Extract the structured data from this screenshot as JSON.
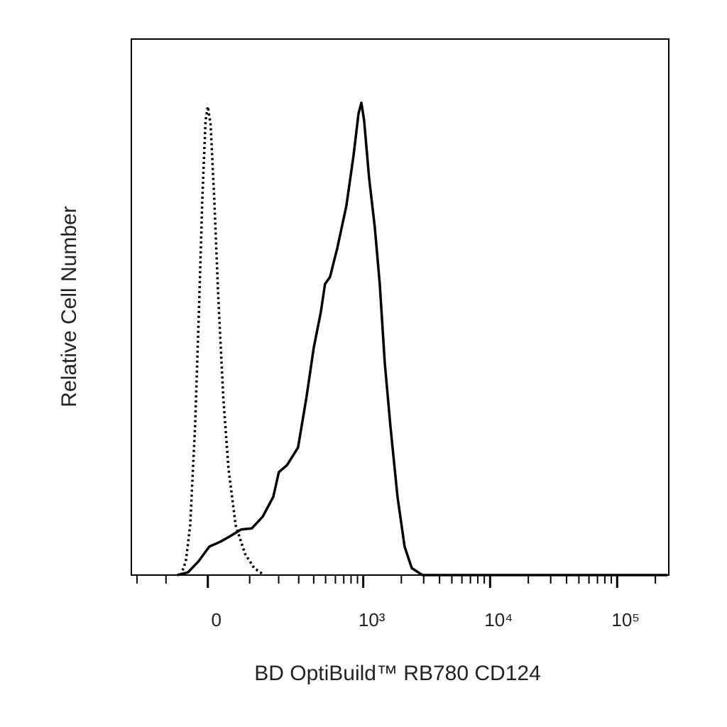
{
  "chart_data": {
    "type": "line",
    "xlabel": "BD OptiBuild™ RB780 CD124",
    "ylabel": "Relative Cell Number",
    "xscale": "biexponential",
    "xlim": [
      -225,
      255000
    ],
    "ylim": [
      0,
      100
    ],
    "xticks": [
      0,
      {
        "value": 1000,
        "label": "10³"
      },
      {
        "value": 10000,
        "label": "10⁴"
      },
      {
        "value": 100000,
        "label": "10⁵"
      }
    ],
    "x_minor_ticks": [
      -200,
      -100,
      100,
      200,
      300,
      400,
      500,
      600,
      700,
      800,
      900,
      2000,
      3000,
      4000,
      5000,
      6000,
      7000,
      8000,
      9000,
      20000,
      30000,
      40000,
      50000,
      60000,
      70000,
      80000,
      90000,
      200000
    ],
    "series": [
      {
        "color": "#000000",
        "dash": "dotted",
        "x": [
          -61,
          -49,
          -39,
          -28,
          -20,
          -12,
          -5,
          0,
          6,
          14,
          23,
          34,
          46,
          63,
          87,
          113,
          145
        ],
        "values": [
          0,
          2.6,
          9.3,
          27.8,
          47.7,
          70.2,
          84.8,
          87.4,
          84.1,
          70.2,
          51.7,
          33.1,
          19.9,
          9.3,
          4,
          1.3,
          0
        ]
      },
      {
        "color": "#000000",
        "dash": "solid",
        "x": [
          -70,
          -44,
          -20,
          3,
          27,
          51,
          77,
          106,
          140,
          178,
          201,
          238,
          296,
          348,
          400,
          457,
          495,
          543,
          620,
          734,
          836,
          917,
          966,
          1016,
          1112,
          1234,
          1351,
          1478,
          1640,
          1866,
          2123,
          2416,
          2932,
          249000
        ],
        "values": [
          0,
          0.5,
          2.6,
          5.3,
          6.2,
          7.3,
          8.5,
          8.7,
          10.9,
          14.6,
          19.2,
          20.5,
          23.8,
          33.1,
          42.4,
          49,
          54.3,
          55.6,
          60.9,
          68.9,
          78.1,
          86.1,
          88.1,
          84.8,
          74.2,
          64.9,
          54.3,
          39.7,
          27.8,
          14.6,
          5.3,
          1.3,
          0,
          0
        ]
      }
    ]
  }
}
